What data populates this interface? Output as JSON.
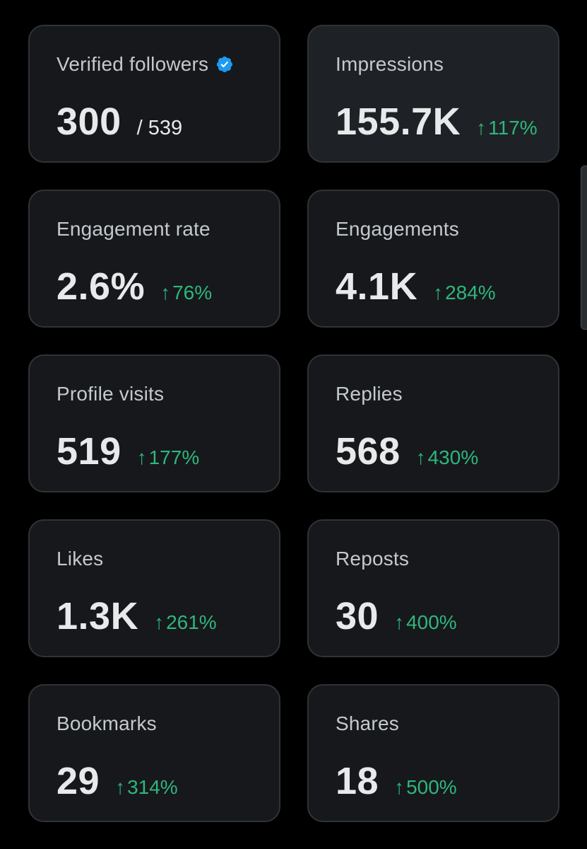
{
  "cards": [
    {
      "label": "Verified followers",
      "value": "300",
      "total": "/ 539",
      "verified_icon": "verified-badge-icon",
      "verified_color": "#1d9bf0"
    },
    {
      "label": "Impressions",
      "value": "155.7K",
      "change": "117%",
      "arrow": "↑"
    },
    {
      "label": "Engagement rate",
      "value": "2.6%",
      "change": "76%",
      "arrow": "↑"
    },
    {
      "label": "Engagements",
      "value": "4.1K",
      "change": "284%",
      "arrow": "↑"
    },
    {
      "label": "Profile visits",
      "value": "519",
      "change": "177%",
      "arrow": "↑"
    },
    {
      "label": "Replies",
      "value": "568",
      "change": "430%",
      "arrow": "↑"
    },
    {
      "label": "Likes",
      "value": "1.3K",
      "change": "261%",
      "arrow": "↑"
    },
    {
      "label": "Reposts",
      "value": "30",
      "change": "400%",
      "arrow": "↑"
    },
    {
      "label": "Bookmarks",
      "value": "29",
      "change": "314%",
      "arrow": "↑"
    },
    {
      "label": "Shares",
      "value": "18",
      "change": "500%",
      "arrow": "↑"
    }
  ],
  "colors": {
    "background": "#000000",
    "card": "#16181c",
    "card_highlight": "#1e2226",
    "border": "#2f3336",
    "positive": "#2fb67c",
    "text_primary": "#e7e9ea",
    "text_secondary": "#c4c9cd"
  }
}
